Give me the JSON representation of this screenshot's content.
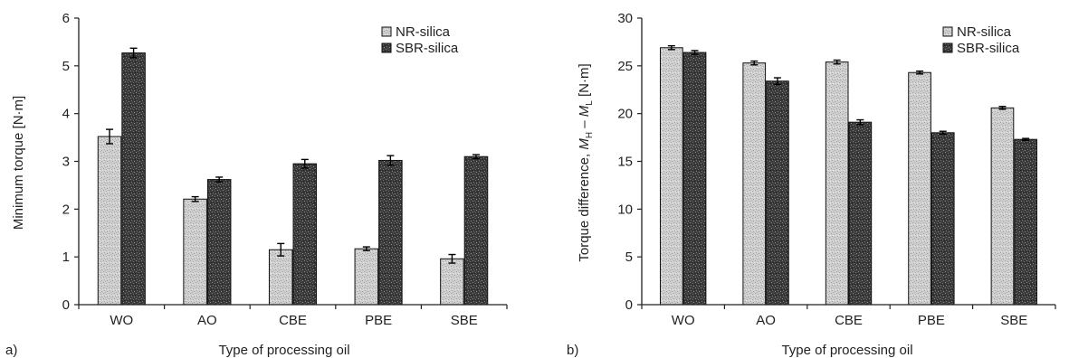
{
  "chart_data": [
    {
      "type": "bar",
      "panel_label": "a)",
      "title": "",
      "xlabel": "Type of processing oil",
      "ylabel": "Minimum torque [N·m]",
      "ylabel_parts": [],
      "categories": [
        "WO",
        "AO",
        "CBE",
        "PBE",
        "SBE"
      ],
      "ylim": [
        0,
        6
      ],
      "yticks": [
        "0",
        "1",
        "2",
        "3",
        "4",
        "5",
        "6"
      ],
      "legend_position": "top-right",
      "grid": false,
      "series": [
        {
          "name": "NR-silica",
          "values": [
            3.52,
            2.21,
            1.15,
            1.17,
            0.96
          ],
          "errors": [
            0.15,
            0.05,
            0.13,
            0.04,
            0.09
          ],
          "pattern": "light"
        },
        {
          "name": "SBR-silica",
          "values": [
            5.27,
            2.62,
            2.95,
            3.02,
            3.1
          ],
          "errors": [
            0.1,
            0.05,
            0.09,
            0.1,
            0.04
          ],
          "pattern": "dark"
        }
      ]
    },
    {
      "type": "bar",
      "panel_label": "b)",
      "title": "",
      "xlabel": "Type of processing oil",
      "ylabel": "",
      "ylabel_parts": [
        {
          "text": "Torque difference, ",
          "italic": false,
          "sub": false
        },
        {
          "text": "M",
          "italic": true,
          "sub": false
        },
        {
          "text": "H",
          "italic": false,
          "sub": true
        },
        {
          "text": " – ",
          "italic": false,
          "sub": false
        },
        {
          "text": "M",
          "italic": true,
          "sub": false
        },
        {
          "text": "L",
          "italic": false,
          "sub": true
        },
        {
          "text": " [N·m]",
          "italic": false,
          "sub": false
        }
      ],
      "categories": [
        "WO",
        "AO",
        "CBE",
        "PBE",
        "SBE"
      ],
      "ylim": [
        0,
        30
      ],
      "yticks": [
        "0",
        "5",
        "10",
        "15",
        "20",
        "25",
        "30"
      ],
      "legend_position": "top-right",
      "grid": false,
      "series": [
        {
          "name": "NR-silica",
          "values": [
            26.9,
            25.3,
            25.4,
            24.3,
            20.6
          ],
          "errors": [
            0.2,
            0.2,
            0.2,
            0.15,
            0.15
          ],
          "pattern": "light"
        },
        {
          "name": "SBR-silica",
          "values": [
            26.4,
            23.4,
            19.1,
            18.0,
            17.3
          ],
          "errors": [
            0.2,
            0.35,
            0.25,
            0.15,
            0.1
          ],
          "pattern": "dark"
        }
      ]
    }
  ],
  "colors": {
    "light_bar": "#c9c9c9",
    "dark_bar": "#3a3a3a",
    "axis": "#222222"
  }
}
